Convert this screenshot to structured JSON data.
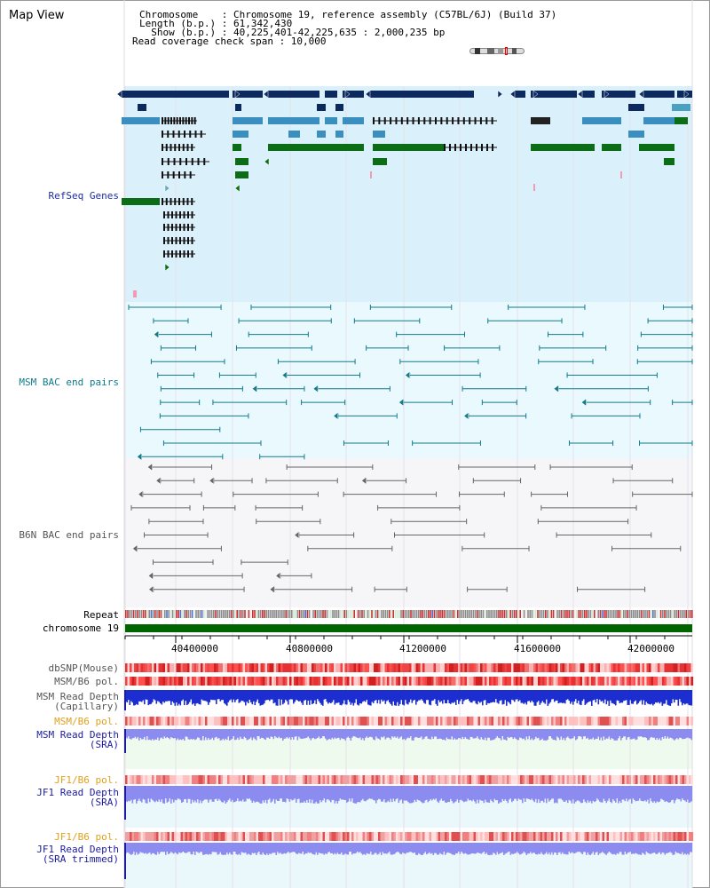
{
  "header": {
    "title": "Map View",
    "info_lines": [
      "Chromosome    : Chromosome 19, reference assembly (C57BL/6J) (Build 37)",
      "Length (b.p.) : 61,342,430",
      "  Show (b.p.) : 40,225,401-42,225,635 : 2,000,235 bp",
      "Read coverage check span : 10,000"
    ]
  },
  "tracks": {
    "refseq": {
      "label": "RefSeq Genes",
      "color": "#1c2ea0"
    },
    "msm_bac": {
      "label": "MSM BAC end pairs",
      "color": "#137b8a"
    },
    "b6n_bac": {
      "label": "B6N BAC end pairs",
      "color": "#555555"
    },
    "repeat": {
      "label": "Repeat",
      "color": "#000000"
    },
    "chromosome": {
      "label": "chromosome 19",
      "color": "#000000"
    },
    "dbsnp": {
      "label": "dbSNP(Mouse)",
      "color": "#555555"
    },
    "msm_b6_pol_1": {
      "label": "MSM/B6 pol.",
      "color": "#555555"
    },
    "msm_depth_cap": {
      "label": "MSM Read Depth\n(Capillary)",
      "color": "#555555"
    },
    "msm_b6_pol_2": {
      "label": "MSM/B6 pol.",
      "color": "#e0a020"
    },
    "msm_depth_sra": {
      "label": "MSM Read Depth\n(SRA)",
      "color": "#1c1ca0"
    },
    "jf1_b6_pol_1": {
      "label": "JF1/B6 pol.",
      "color": "#e0a020"
    },
    "jf1_depth_sra": {
      "label": "JF1 Read Depth\n(SRA)",
      "color": "#1c1ca0"
    },
    "jf1_b6_pol_2": {
      "label": "JF1/B6 pol.",
      "color": "#e0a020"
    },
    "jf1_depth_trim": {
      "label": "JF1 Read Depth\n(SRA trimmed)",
      "color": "#1c1ca0"
    }
  },
  "axis": {
    "ticks": [
      "40400000",
      "40800000",
      "41200000",
      "41600000",
      "42000000"
    ]
  },
  "colors": {
    "refseq_bg": "#daf0fb",
    "msm_bg": "#eaf9fd",
    "b6n_bg": "#f4f6fb",
    "chrom_bar": "#006400",
    "gene_dark": "#0d2a5e",
    "gene_mid": "#3a8fc0",
    "gene_green": "#0b6e16"
  }
}
